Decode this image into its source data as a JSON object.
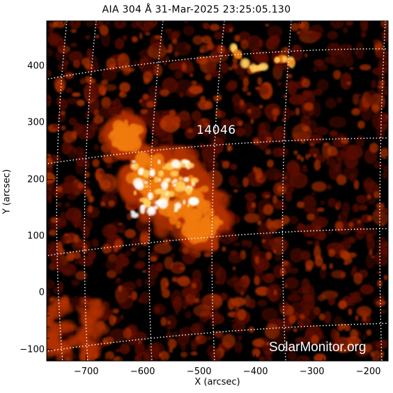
{
  "title": "AIA 304 Å 31-Mar-2025 23:25:05.130",
  "image": {
    "wavelength": "304 Å",
    "instrument": "AIA",
    "colormap": [
      "#000000",
      "#5a0800",
      "#b33000",
      "#f07a10",
      "#ffd060",
      "#ffffff"
    ]
  },
  "axes": {
    "xlabel": "X (arcsec)",
    "ylabel": "Y (arcsec)",
    "xticks": [
      "−700",
      "−600",
      "−500",
      "−400",
      "−300",
      "−200"
    ],
    "yticks": [
      "400",
      "300",
      "200",
      "100",
      "0",
      "−100"
    ],
    "xlim": [
      -770,
      -165
    ],
    "ylim": [
      -120,
      480
    ]
  },
  "annotations": {
    "active_region": "14046"
  },
  "watermark": "SolarMonitor.org"
}
